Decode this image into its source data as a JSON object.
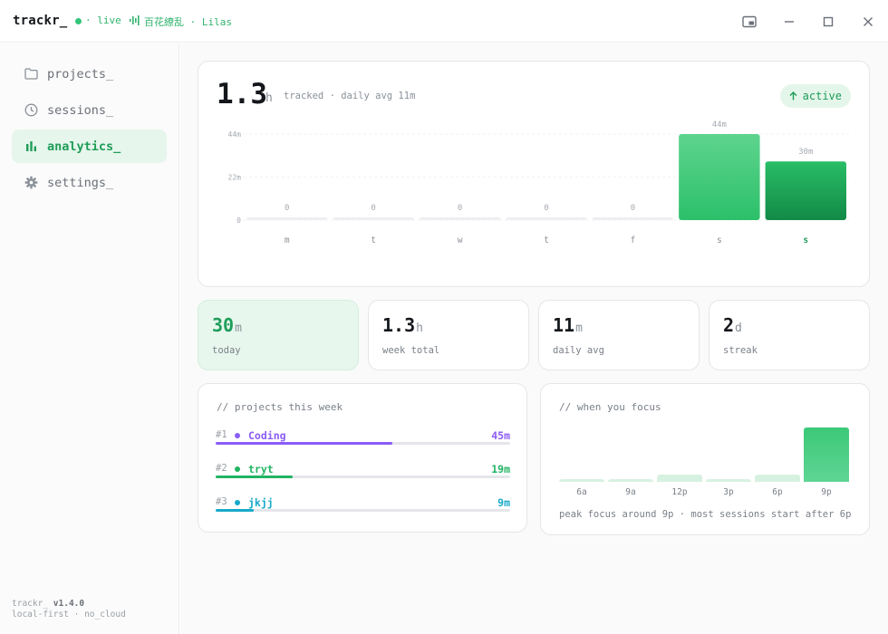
{
  "app": {
    "brand": "trackr_",
    "status": "live",
    "tracking": "百花繚乱 · Lilas"
  },
  "sidebar": {
    "items": [
      {
        "label": "projects_",
        "icon": "folder-icon"
      },
      {
        "label": "sessions_",
        "icon": "clock-icon"
      },
      {
        "label": "analytics_",
        "icon": "bar-chart-icon",
        "active": true
      },
      {
        "label": "settings_",
        "icon": "gear-icon"
      }
    ],
    "footer": {
      "name": "trackr_",
      "version": "v1.4.0",
      "tagline": "local-first · no_cloud"
    }
  },
  "summary": {
    "value": "1.3",
    "unit": "h",
    "meta": "tracked · daily avg 11m",
    "badge": "active"
  },
  "chart_data": {
    "type": "bar",
    "categories": [
      "m",
      "t",
      "w",
      "t",
      "f",
      "s",
      "s"
    ],
    "values": [
      0,
      0,
      0,
      0,
      0,
      44,
      30
    ],
    "data_labels": [
      "0",
      "0",
      "0",
      "0",
      "0",
      "44m",
      "30m"
    ],
    "y_ticks": [
      "0",
      "22m",
      "44m"
    ],
    "ylim": [
      0,
      44
    ],
    "highlight_index": 6,
    "colors": {
      "bar": "#4fce83",
      "highlight": "#1f9d59",
      "empty": "#eceef1"
    }
  },
  "stats": [
    {
      "value": "30",
      "unit": "m",
      "label": "today",
      "highlight": true
    },
    {
      "value": "1.3",
      "unit": "h",
      "label": "week total"
    },
    {
      "value": "11",
      "unit": "m",
      "label": "daily avg"
    },
    {
      "value": "2",
      "unit": "d",
      "label": "streak"
    }
  ],
  "projects": {
    "title": "// projects this week",
    "items": [
      {
        "rank": "#1",
        "name": "Coding",
        "time": "45m",
        "color": "#8b5cf6",
        "fraction": 0.6
      },
      {
        "rank": "#2",
        "name": "tryt",
        "time": "19m",
        "color": "#22b463",
        "fraction": 0.26
      },
      {
        "rank": "#3",
        "name": "jkjj",
        "time": "9m",
        "color": "#17a9c9",
        "fraction": 0.13
      }
    ]
  },
  "focus": {
    "title": "// when you focus",
    "slots": [
      "6a",
      "9a",
      "12p",
      "3p",
      "6p",
      "9p"
    ],
    "levels": [
      0.05,
      0.05,
      0.14,
      0.05,
      0.14,
      1.0
    ],
    "peak_index": 5,
    "note": "peak focus around 9p · most sessions start after 6p"
  }
}
